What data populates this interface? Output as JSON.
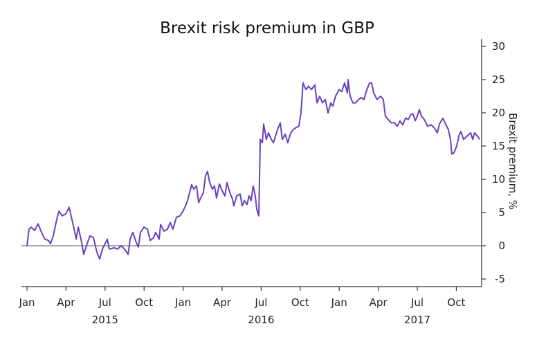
{
  "chart_data": {
    "type": "line",
    "title": "Brexit risk premium in GBP",
    "xlabel": "",
    "ylabel": "Brexit premium, %",
    "ylim": [
      -6,
      31
    ],
    "yticks": [
      30,
      25,
      20,
      15,
      10,
      5,
      0,
      -5
    ],
    "xlim_months_since_jan_2015": [
      0,
      34.8
    ],
    "x_ticks": [
      {
        "month": 0,
        "label": "Jan"
      },
      {
        "month": 3,
        "label": "Apr"
      },
      {
        "month": 6,
        "label": "Jul"
      },
      {
        "month": 9,
        "label": "Oct"
      },
      {
        "month": 12,
        "label": "Jan"
      },
      {
        "month": 15,
        "label": "Apr"
      },
      {
        "month": 18,
        "label": "Jul"
      },
      {
        "month": 21,
        "label": "Oct"
      },
      {
        "month": 24,
        "label": "Jan"
      },
      {
        "month": 27,
        "label": "Apr"
      },
      {
        "month": 30,
        "label": "Jul"
      },
      {
        "month": 33,
        "label": "Oct"
      }
    ],
    "year_labels": [
      {
        "month": 6,
        "label": "2015"
      },
      {
        "month": 18,
        "label": "2016"
      },
      {
        "month": 30,
        "label": "2017"
      }
    ],
    "grid": false,
    "reference_line": 0,
    "series": [
      {
        "name": "Brexit premium",
        "color": "#6a3fbf",
        "x": [
          0,
          0.16,
          0.32,
          0.59,
          0.85,
          1.12,
          1.38,
          1.65,
          1.81,
          2.02,
          2.29,
          2.45,
          2.71,
          2.98,
          3.24,
          3.51,
          3.78,
          3.94,
          4.2,
          4.36,
          4.57,
          4.84,
          5.11,
          5.37,
          5.59,
          5.8,
          6.17,
          6.33,
          6.7,
          6.97,
          7.23,
          7.5,
          7.77,
          7.93,
          8.14,
          8.4,
          8.56,
          8.72,
          8.99,
          9.26,
          9.47,
          9.73,
          9.89,
          10.16,
          10.27,
          10.53,
          10.8,
          11.01,
          11.22,
          11.49,
          11.76,
          12.02,
          12.29,
          12.5,
          12.66,
          12.82,
          13.03,
          13.19,
          13.35,
          13.56,
          13.72,
          13.88,
          14.04,
          14.26,
          14.41,
          14.57,
          14.79,
          14.95,
          15.21,
          15.37,
          15.59,
          15.8,
          15.9,
          16.12,
          16.38,
          16.54,
          16.7,
          16.91,
          17.07,
          17.23,
          17.39,
          17.55,
          17.66,
          17.82,
          17.93,
          18.09,
          18.19,
          18.4,
          18.56,
          18.78,
          18.94,
          19.1,
          19.26,
          19.47,
          19.63,
          19.84,
          20.05,
          20.27,
          20.48,
          20.69,
          20.9,
          21.06,
          21.22,
          21.44,
          21.65,
          21.86,
          22.13,
          22.29,
          22.5,
          22.71,
          22.93,
          23.14,
          23.35,
          23.51,
          23.72,
          23.99,
          24.2,
          24.41,
          24.63,
          24.68,
          24.84,
          25.05,
          25.27,
          25.48,
          25.69,
          25.9,
          26.12,
          26.33,
          26.49,
          26.65,
          26.91,
          27.18,
          27.39,
          27.55,
          27.77,
          27.98,
          28.24,
          28.46,
          28.67,
          28.88,
          29.1,
          29.31,
          29.52,
          29.68,
          29.84,
          30,
          30.16,
          30.32,
          30.53,
          30.8,
          31.06,
          31.28,
          31.54,
          31.7,
          31.97,
          32.13,
          32.39,
          32.55,
          32.66,
          32.82,
          33.03,
          33.19,
          33.35,
          33.56,
          33.83,
          34.1,
          34.26,
          34.41,
          34.63,
          34.79
        ],
        "y": [
          0,
          2.5,
          2.8,
          2.3,
          3.3,
          2.0,
          1.0,
          0.8,
          0.3,
          1.5,
          4,
          5.2,
          4.5,
          4.8,
          5.8,
          3.5,
          1,
          2.8,
          0.5,
          -1.3,
          0,
          1.5,
          1.2,
          -1,
          -2,
          -0.5,
          1,
          -0.5,
          -0.3,
          -0.5,
          0,
          -0.5,
          -1.3,
          1,
          2,
          0.5,
          -0.2,
          2,
          2.8,
          2.5,
          0.8,
          1.2,
          2,
          1.0,
          3.2,
          2.2,
          2.5,
          3.5,
          2.5,
          4.3,
          4.5,
          5.3,
          6.5,
          8,
          9.2,
          8.5,
          9,
          6.5,
          7.2,
          8,
          10.5,
          11.2,
          9.5,
          8.5,
          9,
          7.2,
          9.3,
          8.5,
          7.5,
          9.5,
          8,
          7,
          6,
          7.5,
          7.8,
          6.0,
          6.8,
          6.2,
          7.5,
          6.8,
          9,
          7.5,
          5.5,
          4.5,
          16,
          15.5,
          18.3,
          16,
          17,
          16,
          15.5,
          16.5,
          17.5,
          18.5,
          16,
          16.8,
          15.5,
          17,
          17.5,
          17.8,
          18,
          20,
          24.5,
          23.5,
          24,
          23.5,
          24.2,
          21.5,
          22.5,
          21.5,
          22,
          20,
          21.5,
          21,
          22.5,
          23.5,
          23.2,
          24.5,
          23,
          25,
          22.5,
          21.5,
          21.5,
          22,
          22.3,
          22,
          23.5,
          24.5,
          24.5,
          23,
          22,
          22.5,
          22,
          19.5,
          19,
          18.5,
          18.5,
          18,
          18.8,
          18.2,
          19.2,
          19,
          19.8,
          19.8,
          18.8,
          19.5,
          20.5,
          19.5,
          19,
          18,
          18.2,
          17.8,
          17,
          18.3,
          19.2,
          18.5,
          17.5,
          16,
          13.8,
          14,
          15,
          16.5,
          17.2,
          16,
          16.5,
          17,
          16,
          17,
          16.5,
          16
        ]
      }
    ]
  }
}
